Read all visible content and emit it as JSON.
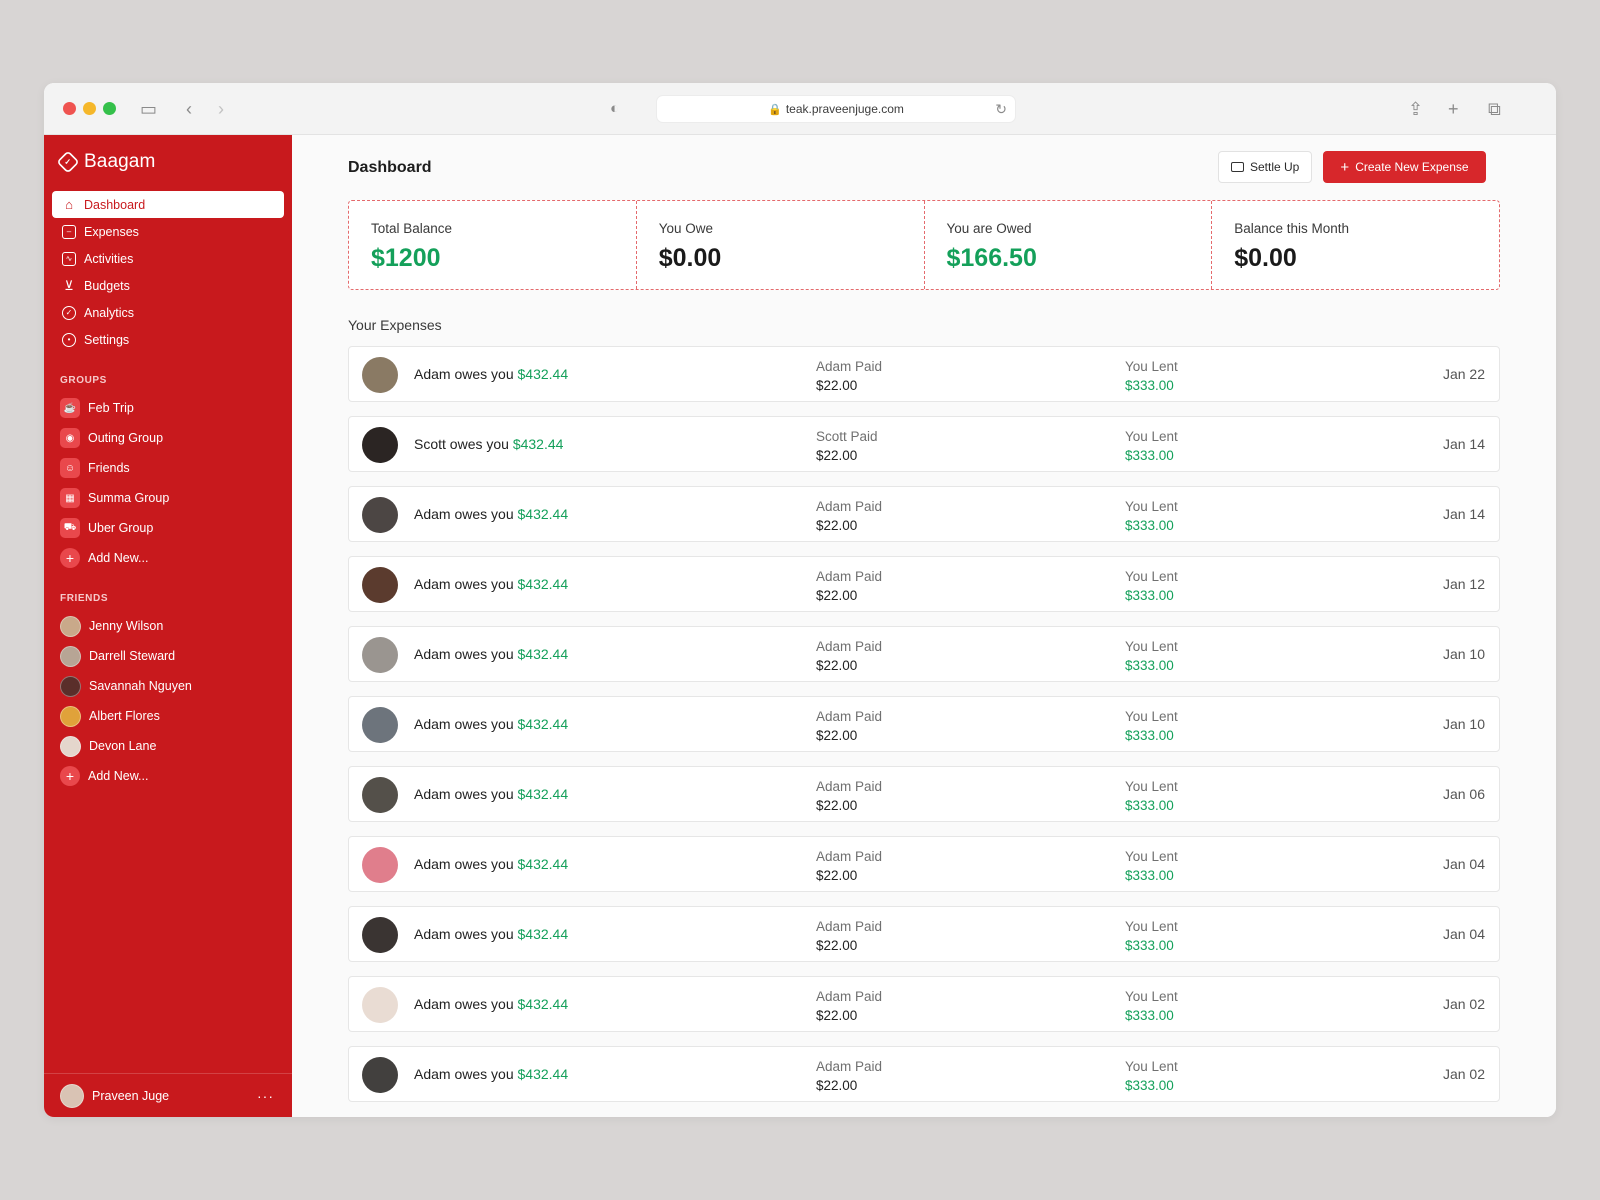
{
  "browser": {
    "url": "teak.praveenjuge.com"
  },
  "sidebar": {
    "brand": "Baagam",
    "nav": [
      {
        "label": "Dashboard",
        "icon": "home-icon",
        "active": true
      },
      {
        "label": "Expenses",
        "icon": "card-icon"
      },
      {
        "label": "Activities",
        "icon": "activity-icon"
      },
      {
        "label": "Budgets",
        "icon": "cart-icon"
      },
      {
        "label": "Analytics",
        "icon": "analytics-icon"
      },
      {
        "label": "Settings",
        "icon": "gear-icon"
      }
    ],
    "groups_title": "GROUPS",
    "groups": [
      {
        "label": "Feb Trip"
      },
      {
        "label": "Outing Group"
      },
      {
        "label": "Friends"
      },
      {
        "label": "Summa Group"
      },
      {
        "label": "Uber Group"
      }
    ],
    "groups_add": "Add New...",
    "friends_title": "FRIENDS",
    "friends": [
      {
        "label": "Jenny Wilson"
      },
      {
        "label": "Darrell Steward"
      },
      {
        "label": "Savannah Nguyen"
      },
      {
        "label": "Albert Flores"
      },
      {
        "label": "Devon Lane"
      }
    ],
    "friends_add": "Add New...",
    "user": "Praveen Juge",
    "user_more": "···"
  },
  "header": {
    "title": "Dashboard",
    "settle_label": "Settle Up",
    "create_label": "Create New Expense"
  },
  "stats": [
    {
      "label": "Total Balance",
      "value": "$1200",
      "color": "#14a05a"
    },
    {
      "label": "You Owe",
      "value": "$0.00",
      "color": "#1a1a1a"
    },
    {
      "label": "You are Owed",
      "value": "$166.50",
      "color": "#14a05a"
    },
    {
      "label": "Balance this Month",
      "value": "$0.00",
      "color": "#1a1a1a"
    }
  ],
  "expenses_title": "Your Expenses",
  "expenses": [
    {
      "name": "Adam owes you",
      "amount": "$432.44",
      "paid_label": "Adam Paid",
      "paid": "$22.00",
      "lent_label": "You Lent",
      "lent": "$333.00",
      "date": "Jan 22"
    },
    {
      "name": "Scott owes you",
      "amount": "$432.44",
      "paid_label": "Scott Paid",
      "paid": "$22.00",
      "lent_label": "You Lent",
      "lent": "$333.00",
      "date": "Jan 14"
    },
    {
      "name": "Adam owes you",
      "amount": "$432.44",
      "paid_label": "Adam Paid",
      "paid": "$22.00",
      "lent_label": "You Lent",
      "lent": "$333.00",
      "date": "Jan 14"
    },
    {
      "name": "Adam owes you",
      "amount": "$432.44",
      "paid_label": "Adam Paid",
      "paid": "$22.00",
      "lent_label": "You Lent",
      "lent": "$333.00",
      "date": "Jan 12"
    },
    {
      "name": "Adam owes you",
      "amount": "$432.44",
      "paid_label": "Adam Paid",
      "paid": "$22.00",
      "lent_label": "You Lent",
      "lent": "$333.00",
      "date": "Jan 10"
    },
    {
      "name": "Adam owes you",
      "amount": "$432.44",
      "paid_label": "Adam Paid",
      "paid": "$22.00",
      "lent_label": "You Lent",
      "lent": "$333.00",
      "date": "Jan 10"
    },
    {
      "name": "Adam owes you",
      "amount": "$432.44",
      "paid_label": "Adam Paid",
      "paid": "$22.00",
      "lent_label": "You Lent",
      "lent": "$333.00",
      "date": "Jan 06"
    },
    {
      "name": "Adam owes you",
      "amount": "$432.44",
      "paid_label": "Adam Paid",
      "paid": "$22.00",
      "lent_label": "You Lent",
      "lent": "$333.00",
      "date": "Jan 04"
    },
    {
      "name": "Adam owes you",
      "amount": "$432.44",
      "paid_label": "Adam Paid",
      "paid": "$22.00",
      "lent_label": "You Lent",
      "lent": "$333.00",
      "date": "Jan 04"
    },
    {
      "name": "Adam owes you",
      "amount": "$432.44",
      "paid_label": "Adam Paid",
      "paid": "$22.00",
      "lent_label": "You Lent",
      "lent": "$333.00",
      "date": "Jan 02"
    },
    {
      "name": "Adam owes you",
      "amount": "$432.44",
      "paid_label": "Adam Paid",
      "paid": "$22.00",
      "lent_label": "You Lent",
      "lent": "$333.00",
      "date": "Jan 02"
    }
  ],
  "colors": {
    "brand_red": "#c8191d",
    "button_red": "#d7272b",
    "positive_green": "#14a05a"
  }
}
